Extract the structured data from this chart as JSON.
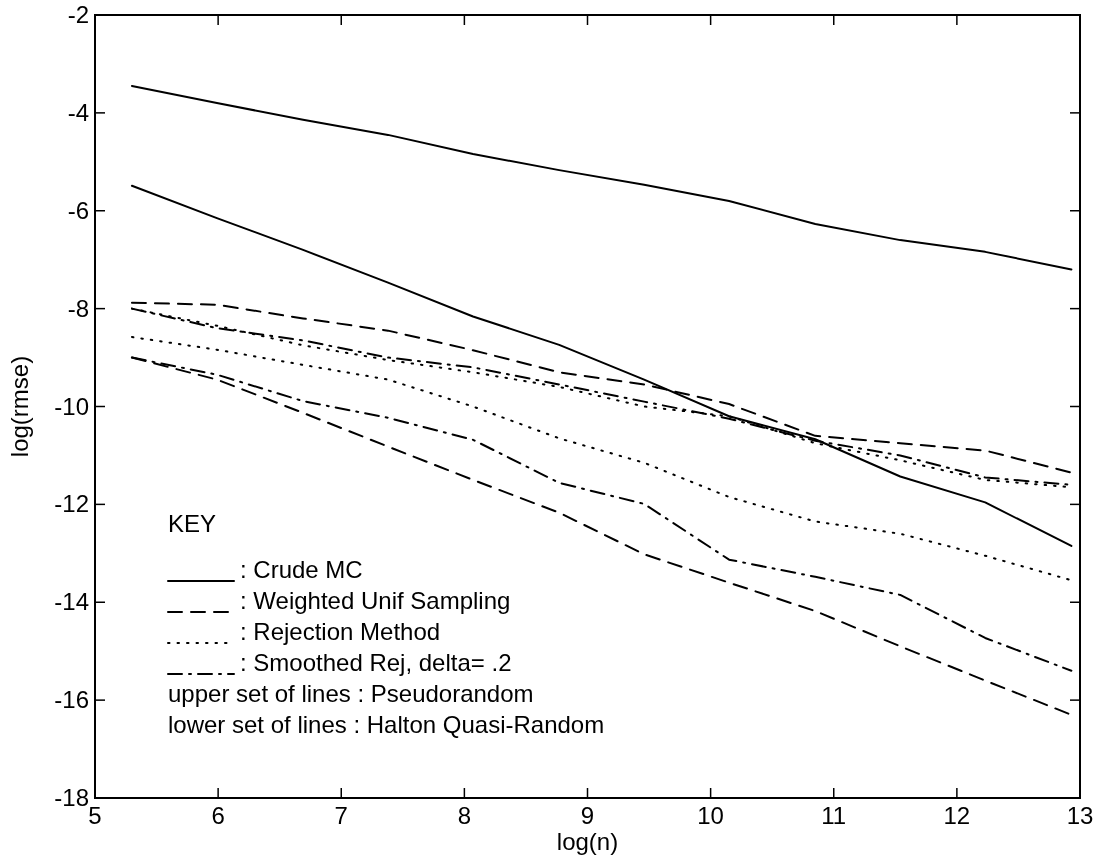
{
  "chart_data": {
    "type": "line",
    "xlabel": "log(n)",
    "ylabel": "log(rmse)",
    "xlim": [
      5,
      13
    ],
    "xticks": [
      5,
      6,
      7,
      8,
      9,
      10,
      11,
      12,
      13
    ],
    "ylim": [
      -18,
      -2
    ],
    "yticks": [
      -18,
      -16,
      -14,
      -12,
      -10,
      -8,
      -6,
      -4,
      -2
    ],
    "x": [
      5.3,
      5.99,
      6.69,
      7.38,
      8.07,
      8.77,
      9.46,
      10.15,
      10.85,
      11.54,
      12.23,
      12.93
    ],
    "legend": "bottom left",
    "legend_title": "KEY",
    "grid": false,
    "marker": "none",
    "series": [
      {
        "name": ": Crude MC",
        "color": "#000000",
        "line_style": "solid",
        "values": [
          -3.45,
          -3.8,
          -4.14,
          -4.45,
          -4.84,
          -5.17,
          -5.47,
          -5.8,
          -6.27,
          -6.6,
          -6.84,
          -7.2
        ]
      },
      {
        "name": ": Weighted Unif Sampling",
        "color": "#000000",
        "line_style": "dashed",
        "values": [
          -7.88,
          -7.92,
          -8.2,
          -8.45,
          -8.85,
          -9.3,
          -9.55,
          -9.95,
          -10.6,
          -10.75,
          -10.9,
          -11.35
        ]
      },
      {
        "name": ": Rejection Method",
        "color": "#000000",
        "line_style": "dotted",
        "values": [
          -8.0,
          -8.35,
          -8.75,
          -9.05,
          -9.3,
          -9.6,
          -10.0,
          -10.2,
          -10.75,
          -11.1,
          -11.5,
          -11.65
        ]
      },
      {
        "name": ": Smoothed Rej, delta= .2",
        "color": "#000000",
        "line_style": "dashdot",
        "values": [
          -8.0,
          -8.4,
          -8.65,
          -9.0,
          -9.2,
          -9.55,
          -9.9,
          -10.25,
          -10.7,
          -11.0,
          -11.45,
          -11.6
        ]
      },
      {
        "color": "#000000",
        "line_style": "solid",
        "values": [
          -5.49,
          -6.15,
          -6.8,
          -7.47,
          -8.16,
          -8.74,
          -9.45,
          -10.2,
          -10.67,
          -11.43,
          -11.96,
          -12.85
        ]
      },
      {
        "color": "#000000",
        "line_style": "dashed",
        "values": [
          -9.0,
          -9.45,
          -10.13,
          -10.82,
          -11.5,
          -12.17,
          -13.02,
          -13.6,
          -14.18,
          -14.9,
          -15.6,
          -16.3
        ]
      },
      {
        "color": "#000000",
        "line_style": "dotted",
        "values": [
          -8.58,
          -8.84,
          -9.15,
          -9.45,
          -10.0,
          -10.65,
          -11.15,
          -11.85,
          -12.35,
          -12.6,
          -13.05,
          -13.55
        ]
      },
      {
        "color": "#000000",
        "line_style": "dashdot",
        "values": [
          -9.0,
          -9.35,
          -9.89,
          -10.23,
          -10.68,
          -11.56,
          -11.99,
          -13.13,
          -13.48,
          -13.85,
          -14.73,
          -15.4
        ]
      }
    ],
    "annotations": [
      "upper set of lines : Pseudorandom",
      "lower set of lines : Halton Quasi-Random"
    ]
  }
}
